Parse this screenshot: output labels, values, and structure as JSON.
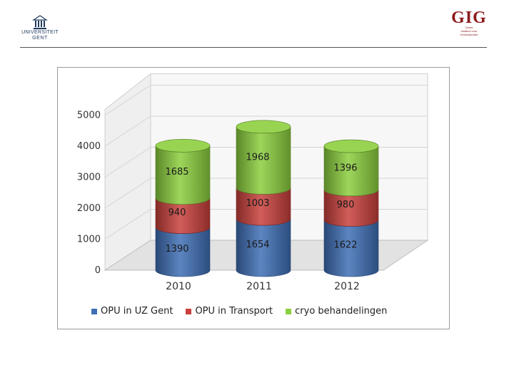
{
  "header": {
    "university_logo": {
      "line1": "UNIVERSITEIT",
      "line2": "GENT"
    },
    "institute_logo": {
      "mark": "GIG",
      "line1": "Gents",
      "line2": "Instituut voor",
      "line3": "Geneeskunde"
    }
  },
  "colors": {
    "opu_uz_gent": "#3f6fb6",
    "opu_transport": "#c9403c",
    "cryo": "#8ccf3e"
  },
  "chart_data": {
    "type": "bar",
    "stacked": true,
    "style": "3d-cylinder",
    "categories": [
      "2010",
      "2011",
      "2012"
    ],
    "series": [
      {
        "name": "OPU in UZ Gent",
        "values": [
          1390,
          1654,
          1622
        ]
      },
      {
        "name": "OPU in Transport",
        "values": [
          940,
          1003,
          980
        ]
      },
      {
        "name": "cryo behandelingen",
        "values": [
          1685,
          1968,
          1396
        ]
      }
    ],
    "y_ticks": [
      "0",
      "1000",
      "2000",
      "3000",
      "4000",
      "5000"
    ],
    "ylim": [
      0,
      5000
    ],
    "grid": true,
    "legend": "bottom"
  }
}
